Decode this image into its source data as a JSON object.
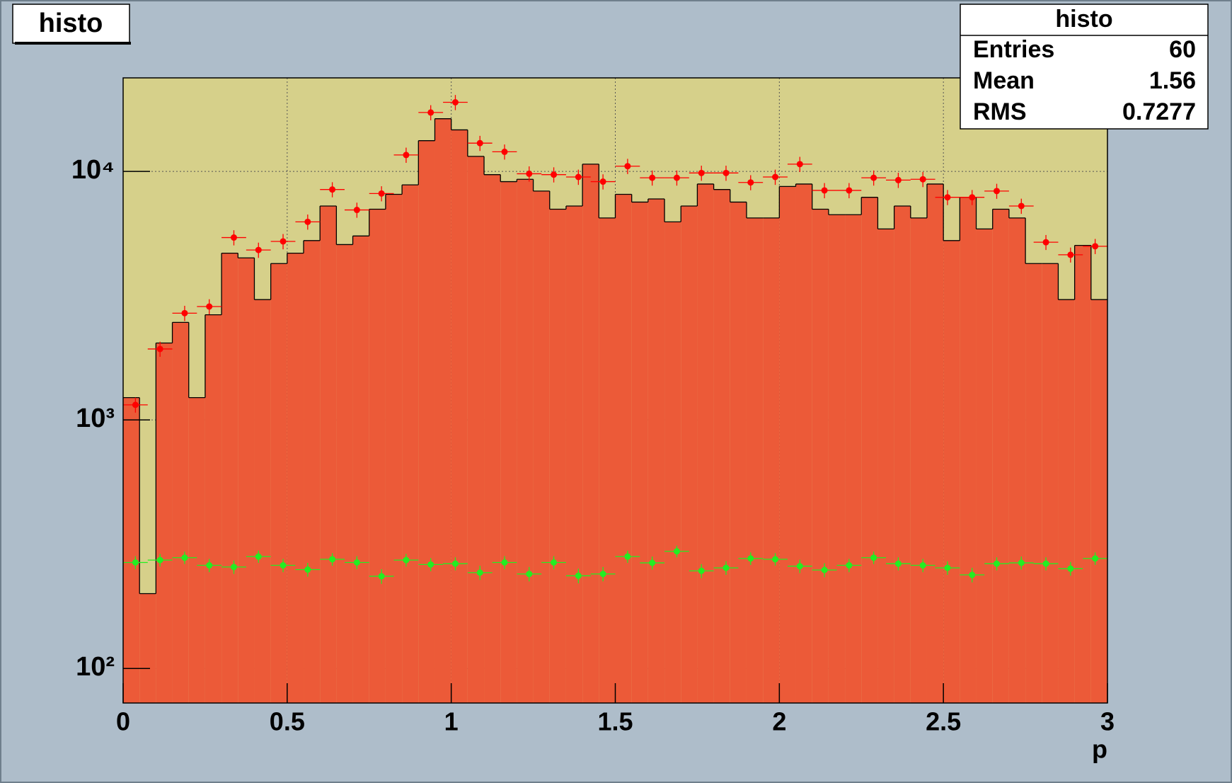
{
  "chart_data": {
    "type": "histogram",
    "title": "histo",
    "xlabel": "p",
    "xlim": [
      0,
      3
    ],
    "ylim": [
      72.6,
      23800
    ],
    "log_y": true,
    "grid": true,
    "xticks": [
      0,
      0.5,
      1,
      1.5,
      2,
      2.5,
      3
    ],
    "yticks": [
      {
        "value": 100,
        "label": "10²"
      },
      {
        "value": 1000,
        "label": "10³"
      },
      {
        "value": 10000,
        "label": "10⁴"
      }
    ],
    "background": "#d6d08a",
    "color": "#ec5a38",
    "bins": [
      0,
      0.05,
      0.1,
      0.15,
      0.2,
      0.25,
      0.3,
      0.35,
      0.4,
      0.45,
      0.5,
      0.55,
      0.6,
      0.65,
      0.7,
      0.75,
      0.8,
      0.85,
      0.9,
      0.95,
      1,
      1.05,
      1.1,
      1.15,
      1.2,
      1.25,
      1.3,
      1.35,
      1.4,
      1.45,
      1.5,
      1.55,
      1.6,
      1.65,
      1.7,
      1.75,
      1.8,
      1.85,
      1.9,
      1.95,
      2,
      2.05,
      2.1,
      2.15,
      2.2,
      2.25,
      2.3,
      2.35,
      2.4,
      2.45,
      2.5,
      2.55,
      2.6,
      2.65,
      2.7,
      2.75,
      2.8,
      2.85,
      2.9,
      2.95,
      3
    ],
    "counts": [
      1230,
      200,
      2040,
      2470,
      1230,
      2650,
      4690,
      4490,
      3050,
      4260,
      4690,
      5270,
      7260,
      5080,
      5500,
      7050,
      8090,
      8830,
      13300,
      16300,
      14700,
      11500,
      9710,
      9100,
      9300,
      8340,
      7050,
      7260,
      10700,
      6500,
      8090,
      7530,
      7750,
      6270,
      7260,
      8900,
      8460,
      7530,
      6500,
      6500,
      8700,
      8900,
      7050,
      6700,
      6700,
      7870,
      5870,
      7260,
      6500,
      8900,
      5270,
      7870,
      5870,
      7050,
      6500,
      4260,
      4260,
      3050,
      5040,
      3050
    ],
    "overlays": [
      {
        "type": "errorbar",
        "color": "#ff0000",
        "bins": [
          0,
          0.075,
          0.15,
          0.225,
          0.3,
          0.375,
          0.45,
          0.525,
          0.6,
          0.675,
          0.75,
          0.825,
          0.9,
          0.975,
          1.05,
          1.125,
          1.2,
          1.275,
          1.35,
          1.425,
          1.5,
          1.575,
          1.65,
          1.725,
          1.8,
          1.875,
          1.95,
          2.025,
          2.1,
          2.175,
          2.25,
          2.325,
          2.4,
          2.475,
          2.55,
          2.625,
          2.7,
          2.775,
          2.85,
          2.925,
          3
        ],
        "values": [
          1150,
          1930,
          2690,
          2860,
          5420,
          4830,
          5230,
          6270,
          8460,
          7000,
          8150,
          11650,
          17270,
          18980,
          13000,
          12000,
          9790,
          9710,
          9500,
          9100,
          10500,
          9430,
          9430,
          9860,
          9860,
          9030,
          9500,
          10700,
          8390,
          8390,
          9430,
          9230,
          9300,
          7870,
          7870,
          8340,
          7260,
          5190,
          4620,
          5000
        ],
        "errors": [
          80,
          135,
          190,
          200,
          380,
          340,
          370,
          440,
          590,
          490,
          570,
          820,
          1210,
          1330,
          910,
          840,
          690,
          680,
          670,
          640,
          740,
          660,
          660,
          690,
          690,
          630,
          670,
          750,
          590,
          590,
          660,
          650,
          650,
          550,
          550,
          580,
          510,
          360,
          320,
          350
        ]
      },
      {
        "type": "errorbar",
        "color": "#22ee22",
        "bins": [
          0,
          0.075,
          0.15,
          0.225,
          0.3,
          0.375,
          0.45,
          0.525,
          0.6,
          0.675,
          0.75,
          0.825,
          0.9,
          0.975,
          1.05,
          1.125,
          1.2,
          1.275,
          1.35,
          1.425,
          1.5,
          1.575,
          1.65,
          1.725,
          1.8,
          1.875,
          1.95,
          2.025,
          2.1,
          2.175,
          2.25,
          2.325,
          2.4,
          2.475,
          2.55,
          2.625,
          2.7,
          2.775,
          2.85,
          2.925,
          3
        ],
        "values": [
          267,
          273,
          279,
          260,
          256,
          282,
          260,
          250,
          275,
          267,
          235,
          273,
          262,
          264,
          243,
          267,
          240,
          267,
          236,
          240,
          282,
          266,
          296,
          247,
          254,
          277,
          275,
          258,
          249,
          260,
          279,
          264,
          260,
          254,
          238,
          264,
          266,
          264,
          252,
          277
        ],
        "errors": [
          16,
          16,
          16,
          16,
          16,
          16,
          16,
          16,
          16,
          16,
          16,
          16,
          16,
          16,
          16,
          16,
          16,
          16,
          16,
          16,
          16,
          16,
          16,
          16,
          16,
          16,
          16,
          16,
          16,
          16,
          16,
          16,
          16,
          16,
          16,
          16,
          16,
          16,
          16,
          16
        ]
      }
    ],
    "stats": {
      "title": "histo",
      "rows": [
        {
          "label": "Entries",
          "value": 60
        },
        {
          "label": "Mean",
          "value": 1.56
        },
        {
          "label": "RMS",
          "value": 0.7277
        }
      ]
    }
  }
}
